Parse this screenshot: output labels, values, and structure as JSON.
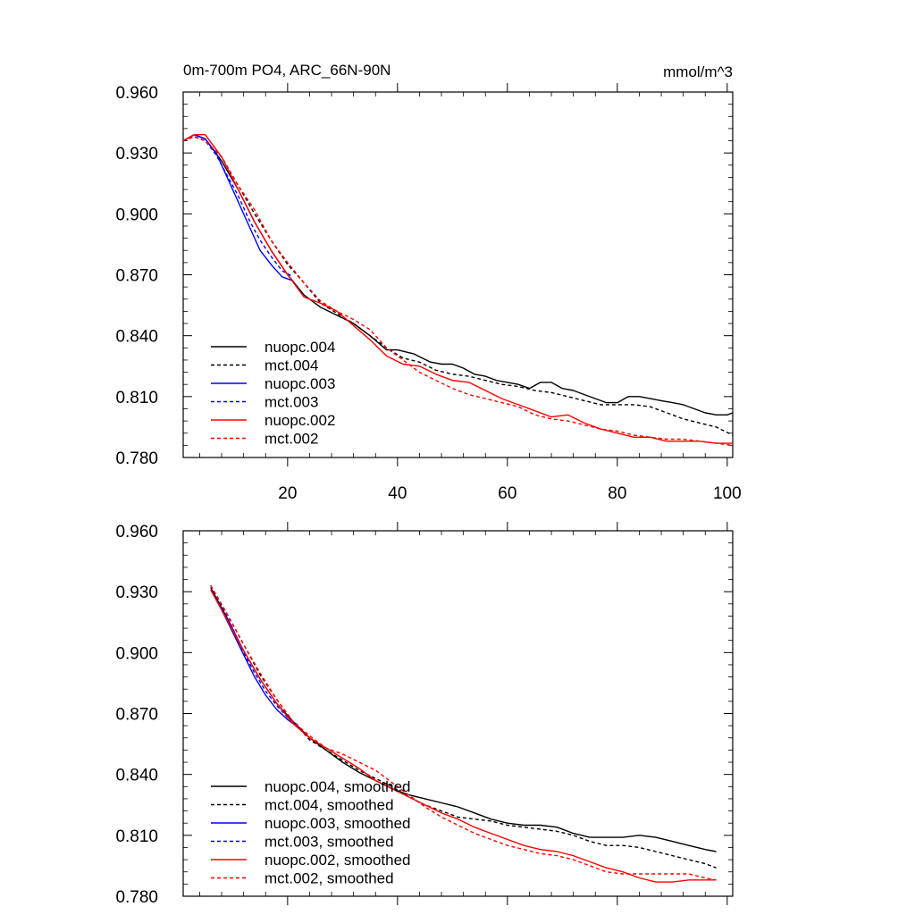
{
  "figure": {
    "title_left": "0m-700m PO4, ARC_66N-90N",
    "title_right": "mmol/m^3"
  },
  "chart_data": [
    {
      "type": "line",
      "title": "0m-700m PO4, ARC_66N-90N",
      "units": "mmol/m^3",
      "xlim": [
        1,
        101
      ],
      "ylim": [
        0.78,
        0.96
      ],
      "x_ticks": [
        20,
        40,
        60,
        80,
        100
      ],
      "y_ticks": [
        "0.960",
        "0.930",
        "0.900",
        "0.870",
        "0.840",
        "0.810",
        "0.780"
      ],
      "y_tick_values": [
        0.96,
        0.93,
        0.9,
        0.87,
        0.84,
        0.81,
        0.78
      ],
      "legend_position": "bottom-left",
      "series": [
        {
          "name": "nuopc.004",
          "color": "#000000",
          "dash": false,
          "x": [
            1,
            3,
            5,
            8,
            11,
            14,
            17,
            20,
            23,
            26,
            29,
            32,
            35,
            38,
            40,
            43,
            46,
            48,
            50,
            52,
            54,
            56,
            58,
            60,
            62,
            64,
            66,
            68,
            70,
            72,
            74,
            76,
            78,
            80,
            82,
            84,
            86,
            88,
            90,
            92,
            94,
            96,
            98,
            100,
            101
          ],
          "y": [
            0.936,
            0.939,
            0.937,
            0.926,
            0.912,
            0.896,
            0.882,
            0.87,
            0.86,
            0.854,
            0.85,
            0.846,
            0.84,
            0.833,
            0.833,
            0.831,
            0.827,
            0.826,
            0.826,
            0.824,
            0.821,
            0.82,
            0.818,
            0.817,
            0.816,
            0.814,
            0.817,
            0.817,
            0.814,
            0.813,
            0.811,
            0.809,
            0.807,
            0.807,
            0.81,
            0.81,
            0.809,
            0.808,
            0.807,
            0.806,
            0.804,
            0.802,
            0.801,
            0.801,
            0.802
          ]
        },
        {
          "name": "mct.004",
          "color": "#000000",
          "dash": true,
          "x": [
            1,
            3,
            5,
            8,
            11,
            14,
            17,
            20,
            23,
            26,
            29,
            32,
            35,
            38,
            41,
            44,
            47,
            50,
            53,
            56,
            59,
            62,
            65,
            68,
            71,
            74,
            77,
            80,
            83,
            86,
            89,
            92,
            95,
            98,
            101
          ],
          "y": [
            0.936,
            0.938,
            0.936,
            0.928,
            0.914,
            0.9,
            0.887,
            0.875,
            0.866,
            0.856,
            0.851,
            0.846,
            0.84,
            0.834,
            0.829,
            0.827,
            0.823,
            0.821,
            0.82,
            0.818,
            0.816,
            0.815,
            0.813,
            0.812,
            0.81,
            0.808,
            0.806,
            0.806,
            0.806,
            0.805,
            0.802,
            0.799,
            0.797,
            0.795,
            0.791
          ]
        },
        {
          "name": "nuopc.003",
          "color": "#0000ff",
          "dash": false,
          "x": [
            1,
            3,
            5,
            7,
            9,
            11,
            13,
            15,
            17,
            19,
            21
          ],
          "y": [
            0.936,
            0.939,
            0.937,
            0.93,
            0.918,
            0.906,
            0.894,
            0.882,
            0.875,
            0.869,
            0.867
          ]
        },
        {
          "name": "mct.003",
          "color": "#0000ff",
          "dash": true,
          "x": [
            1,
            3,
            5,
            7,
            9,
            11,
            13,
            15,
            17,
            19,
            21
          ],
          "y": [
            0.936,
            0.938,
            0.936,
            0.929,
            0.919,
            0.909,
            0.897,
            0.887,
            0.879,
            0.872,
            0.869
          ]
        },
        {
          "name": "nuopc.002",
          "color": "#ff0000",
          "dash": false,
          "x": [
            1,
            3,
            5,
            8,
            11,
            14,
            17,
            20,
            23,
            26,
            29,
            32,
            35,
            38,
            41,
            44,
            47,
            50,
            53,
            56,
            59,
            62,
            65,
            68,
            71,
            74,
            77,
            80,
            83,
            86,
            89,
            92,
            95,
            98,
            101
          ],
          "y": [
            0.936,
            0.939,
            0.939,
            0.928,
            0.912,
            0.896,
            0.882,
            0.87,
            0.859,
            0.856,
            0.852,
            0.845,
            0.838,
            0.83,
            0.826,
            0.825,
            0.821,
            0.818,
            0.817,
            0.813,
            0.809,
            0.806,
            0.803,
            0.8,
            0.801,
            0.797,
            0.794,
            0.792,
            0.79,
            0.79,
            0.788,
            0.788,
            0.788,
            0.787,
            0.787
          ]
        },
        {
          "name": "mct.002",
          "color": "#ff0000",
          "dash": true,
          "x": [
            1,
            3,
            5,
            8,
            11,
            14,
            17,
            20,
            23,
            26,
            29,
            32,
            35,
            38,
            41,
            44,
            47,
            50,
            53,
            56,
            59,
            62,
            65,
            68,
            71,
            74,
            77,
            80,
            83,
            86,
            89,
            92,
            95,
            98,
            101
          ],
          "y": [
            0.936,
            0.938,
            0.936,
            0.928,
            0.914,
            0.902,
            0.887,
            0.876,
            0.866,
            0.857,
            0.852,
            0.848,
            0.843,
            0.834,
            0.828,
            0.822,
            0.818,
            0.814,
            0.811,
            0.809,
            0.807,
            0.805,
            0.801,
            0.799,
            0.798,
            0.796,
            0.794,
            0.793,
            0.791,
            0.79,
            0.789,
            0.789,
            0.788,
            0.787,
            0.786
          ]
        }
      ]
    },
    {
      "type": "line",
      "xlim": [
        1,
        101
      ],
      "ylim": [
        0.78,
        0.96
      ],
      "y_ticks": [
        "0.960",
        "0.930",
        "0.900",
        "0.870",
        "0.840",
        "0.810",
        "0.780"
      ],
      "y_tick_values": [
        0.96,
        0.93,
        0.9,
        0.87,
        0.84,
        0.81,
        0.78
      ],
      "legend_position": "bottom-left",
      "series": [
        {
          "name": "nuopc.004, smoothed",
          "color": "#000000",
          "dash": false,
          "x": [
            6,
            9,
            12,
            15,
            18,
            21,
            24,
            27,
            30,
            33,
            36,
            39,
            42,
            45,
            48,
            51,
            54,
            57,
            60,
            63,
            66,
            69,
            72,
            75,
            78,
            81,
            84,
            87,
            90,
            93,
            96,
            98
          ],
          "y": [
            0.932,
            0.917,
            0.901,
            0.887,
            0.875,
            0.866,
            0.858,
            0.852,
            0.846,
            0.841,
            0.837,
            0.833,
            0.83,
            0.828,
            0.826,
            0.824,
            0.821,
            0.818,
            0.816,
            0.815,
            0.815,
            0.814,
            0.811,
            0.809,
            0.809,
            0.809,
            0.81,
            0.809,
            0.807,
            0.805,
            0.803,
            0.802
          ]
        },
        {
          "name": "mct.004, smoothed",
          "color": "#000000",
          "dash": true,
          "x": [
            6,
            9,
            12,
            15,
            18,
            21,
            24,
            27,
            30,
            33,
            36,
            39,
            42,
            45,
            48,
            51,
            54,
            57,
            60,
            63,
            66,
            69,
            72,
            75,
            78,
            81,
            84,
            87,
            90,
            93,
            96,
            98
          ],
          "y": [
            0.933,
            0.919,
            0.904,
            0.889,
            0.877,
            0.866,
            0.857,
            0.852,
            0.847,
            0.842,
            0.838,
            0.834,
            0.829,
            0.825,
            0.822,
            0.819,
            0.818,
            0.817,
            0.815,
            0.814,
            0.813,
            0.812,
            0.81,
            0.807,
            0.805,
            0.805,
            0.804,
            0.802,
            0.8,
            0.798,
            0.796,
            0.794
          ]
        },
        {
          "name": "nuopc.003, smoothed",
          "color": "#0000ff",
          "dash": false,
          "x": [
            6,
            8,
            10,
            12,
            14,
            16,
            18,
            20,
            22
          ],
          "y": [
            0.931,
            0.921,
            0.91,
            0.899,
            0.888,
            0.879,
            0.872,
            0.867,
            0.863
          ]
        },
        {
          "name": "mct.003, smoothed",
          "color": "#0000ff",
          "dash": true,
          "x": [
            6,
            8,
            10,
            12,
            14,
            16,
            18,
            20,
            22
          ],
          "y": [
            0.933,
            0.923,
            0.912,
            0.9,
            0.89,
            0.881,
            0.874,
            0.868,
            0.864
          ]
        },
        {
          "name": "nuopc.002, smoothed",
          "color": "#ff0000",
          "dash": false,
          "x": [
            6,
            9,
            12,
            15,
            18,
            21,
            24,
            27,
            30,
            33,
            36,
            39,
            42,
            45,
            48,
            51,
            54,
            57,
            60,
            63,
            66,
            69,
            72,
            75,
            78,
            81,
            84,
            87,
            90,
            93,
            96,
            98
          ],
          "y": [
            0.931,
            0.916,
            0.901,
            0.887,
            0.875,
            0.865,
            0.858,
            0.853,
            0.848,
            0.843,
            0.837,
            0.833,
            0.829,
            0.825,
            0.821,
            0.818,
            0.814,
            0.811,
            0.808,
            0.805,
            0.803,
            0.802,
            0.8,
            0.797,
            0.794,
            0.792,
            0.789,
            0.787,
            0.787,
            0.788,
            0.788,
            0.788
          ]
        },
        {
          "name": "mct.002, smoothed",
          "color": "#ff0000",
          "dash": true,
          "x": [
            6,
            9,
            12,
            15,
            18,
            21,
            24,
            27,
            30,
            33,
            36,
            39,
            42,
            45,
            48,
            51,
            54,
            57,
            60,
            63,
            66,
            69,
            72,
            75,
            78,
            81,
            84,
            87,
            90,
            93,
            96,
            98
          ],
          "y": [
            0.933,
            0.919,
            0.904,
            0.89,
            0.877,
            0.866,
            0.859,
            0.853,
            0.85,
            0.846,
            0.842,
            0.836,
            0.83,
            0.824,
            0.819,
            0.815,
            0.811,
            0.808,
            0.805,
            0.803,
            0.801,
            0.8,
            0.798,
            0.795,
            0.792,
            0.791,
            0.791,
            0.791,
            0.791,
            0.791,
            0.789,
            0.788
          ]
        }
      ]
    }
  ]
}
